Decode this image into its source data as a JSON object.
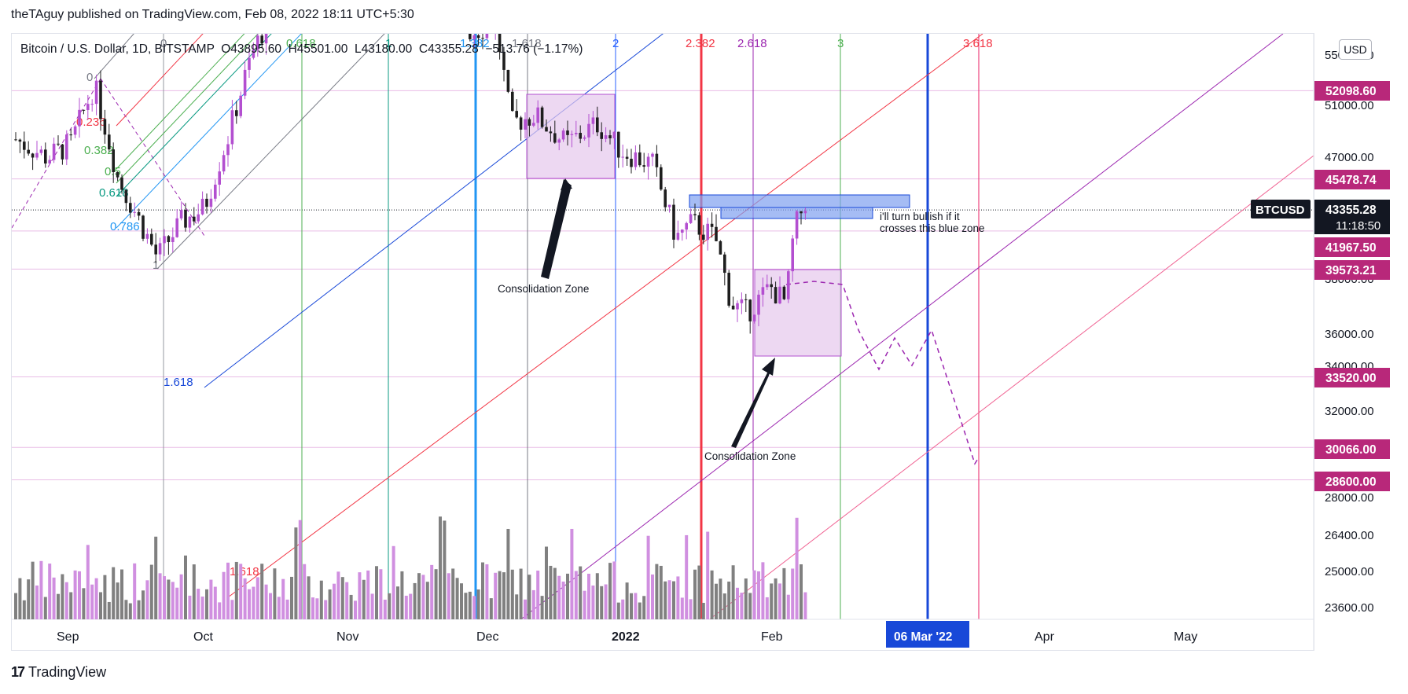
{
  "header": {
    "published_by": "theTAguy published on TradingView.com, Feb 08, 2022 18:11 UTC+5:30"
  },
  "legend": {
    "text": "Bitcoin / U.S. Dollar, 1D, BITSTAMP  O43895.60  H45501.00  L43180.00  C43355.28  −513.76 (−1.17%)"
  },
  "currency_button": "USD",
  "footer": {
    "logo_text": "TradingView"
  },
  "colors": {
    "bull": "#b34fd0",
    "bear": "#1e1e1e",
    "volume_up": "#d08fe0",
    "volume_down": "#808080",
    "price_tag": "#b8287a",
    "blue_line": "#1848d8",
    "red_line": "#f23645",
    "purple_line": "#9c27b0",
    "zone_fill": "#e6c7ec",
    "blue_zone": "#7f9ff0"
  },
  "annotations": {
    "consolidation_1": "Consolidation Zone",
    "consolidation_2": "Consolidation Zone",
    "bullish_note_line1": "i'll turn bullish if it",
    "bullish_note_line2": "crosses this blue zone"
  },
  "fib_time_labels": [
    "0",
    "0.618",
    "1.382",
    "1.618",
    "2",
    "2.382",
    "2.618",
    "3",
    "3.618"
  ],
  "fib_channel_labels": [
    "0",
    "0.236",
    "0.382",
    "0.5",
    "0.618",
    "0.786",
    "1",
    "1.618",
    "1.618"
  ],
  "chart_data": {
    "type": "candlestick",
    "title": "Bitcoin / U.S. Dollar, 1D, BITSTAMP",
    "symbol": "BTCUSD",
    "interval": "1D",
    "ohlc_last": {
      "open": 43895.6,
      "high": 45501.0,
      "low": 43180.0,
      "close": 43355.28,
      "change": -513.76,
      "change_pct": -1.17
    },
    "x_ticks": [
      "Sep",
      "Oct",
      "Nov",
      "Dec",
      "2022",
      "Feb",
      "06 Mar '22",
      "Apr",
      "May"
    ],
    "y_ticks": [
      23600,
      25000,
      26400,
      28000,
      30000,
      32000,
      34000,
      36000,
      38000,
      47000,
      51000,
      55000
    ],
    "y_tick_labels": [
      "23600.00",
      "25000.00",
      "26400.00",
      "28000.00",
      "32000.00",
      "36000.00",
      "47000.00",
      "51000.00",
      "55000.00"
    ],
    "price_levels": [
      52098.6,
      45478.74,
      41967.5,
      39573.21,
      33520.0,
      30066.0,
      28600.0
    ],
    "price_level_labels": [
      "52098.60",
      "45478.74",
      "41967.50",
      "39573.21",
      "33520.00",
      "30066.00",
      "28600.00"
    ],
    "current_price": {
      "symbol": "BTCUSD",
      "price": "43355.28",
      "countdown": "11:18:50"
    },
    "crosshair_date": "06 Mar '22",
    "scale": "log"
  }
}
